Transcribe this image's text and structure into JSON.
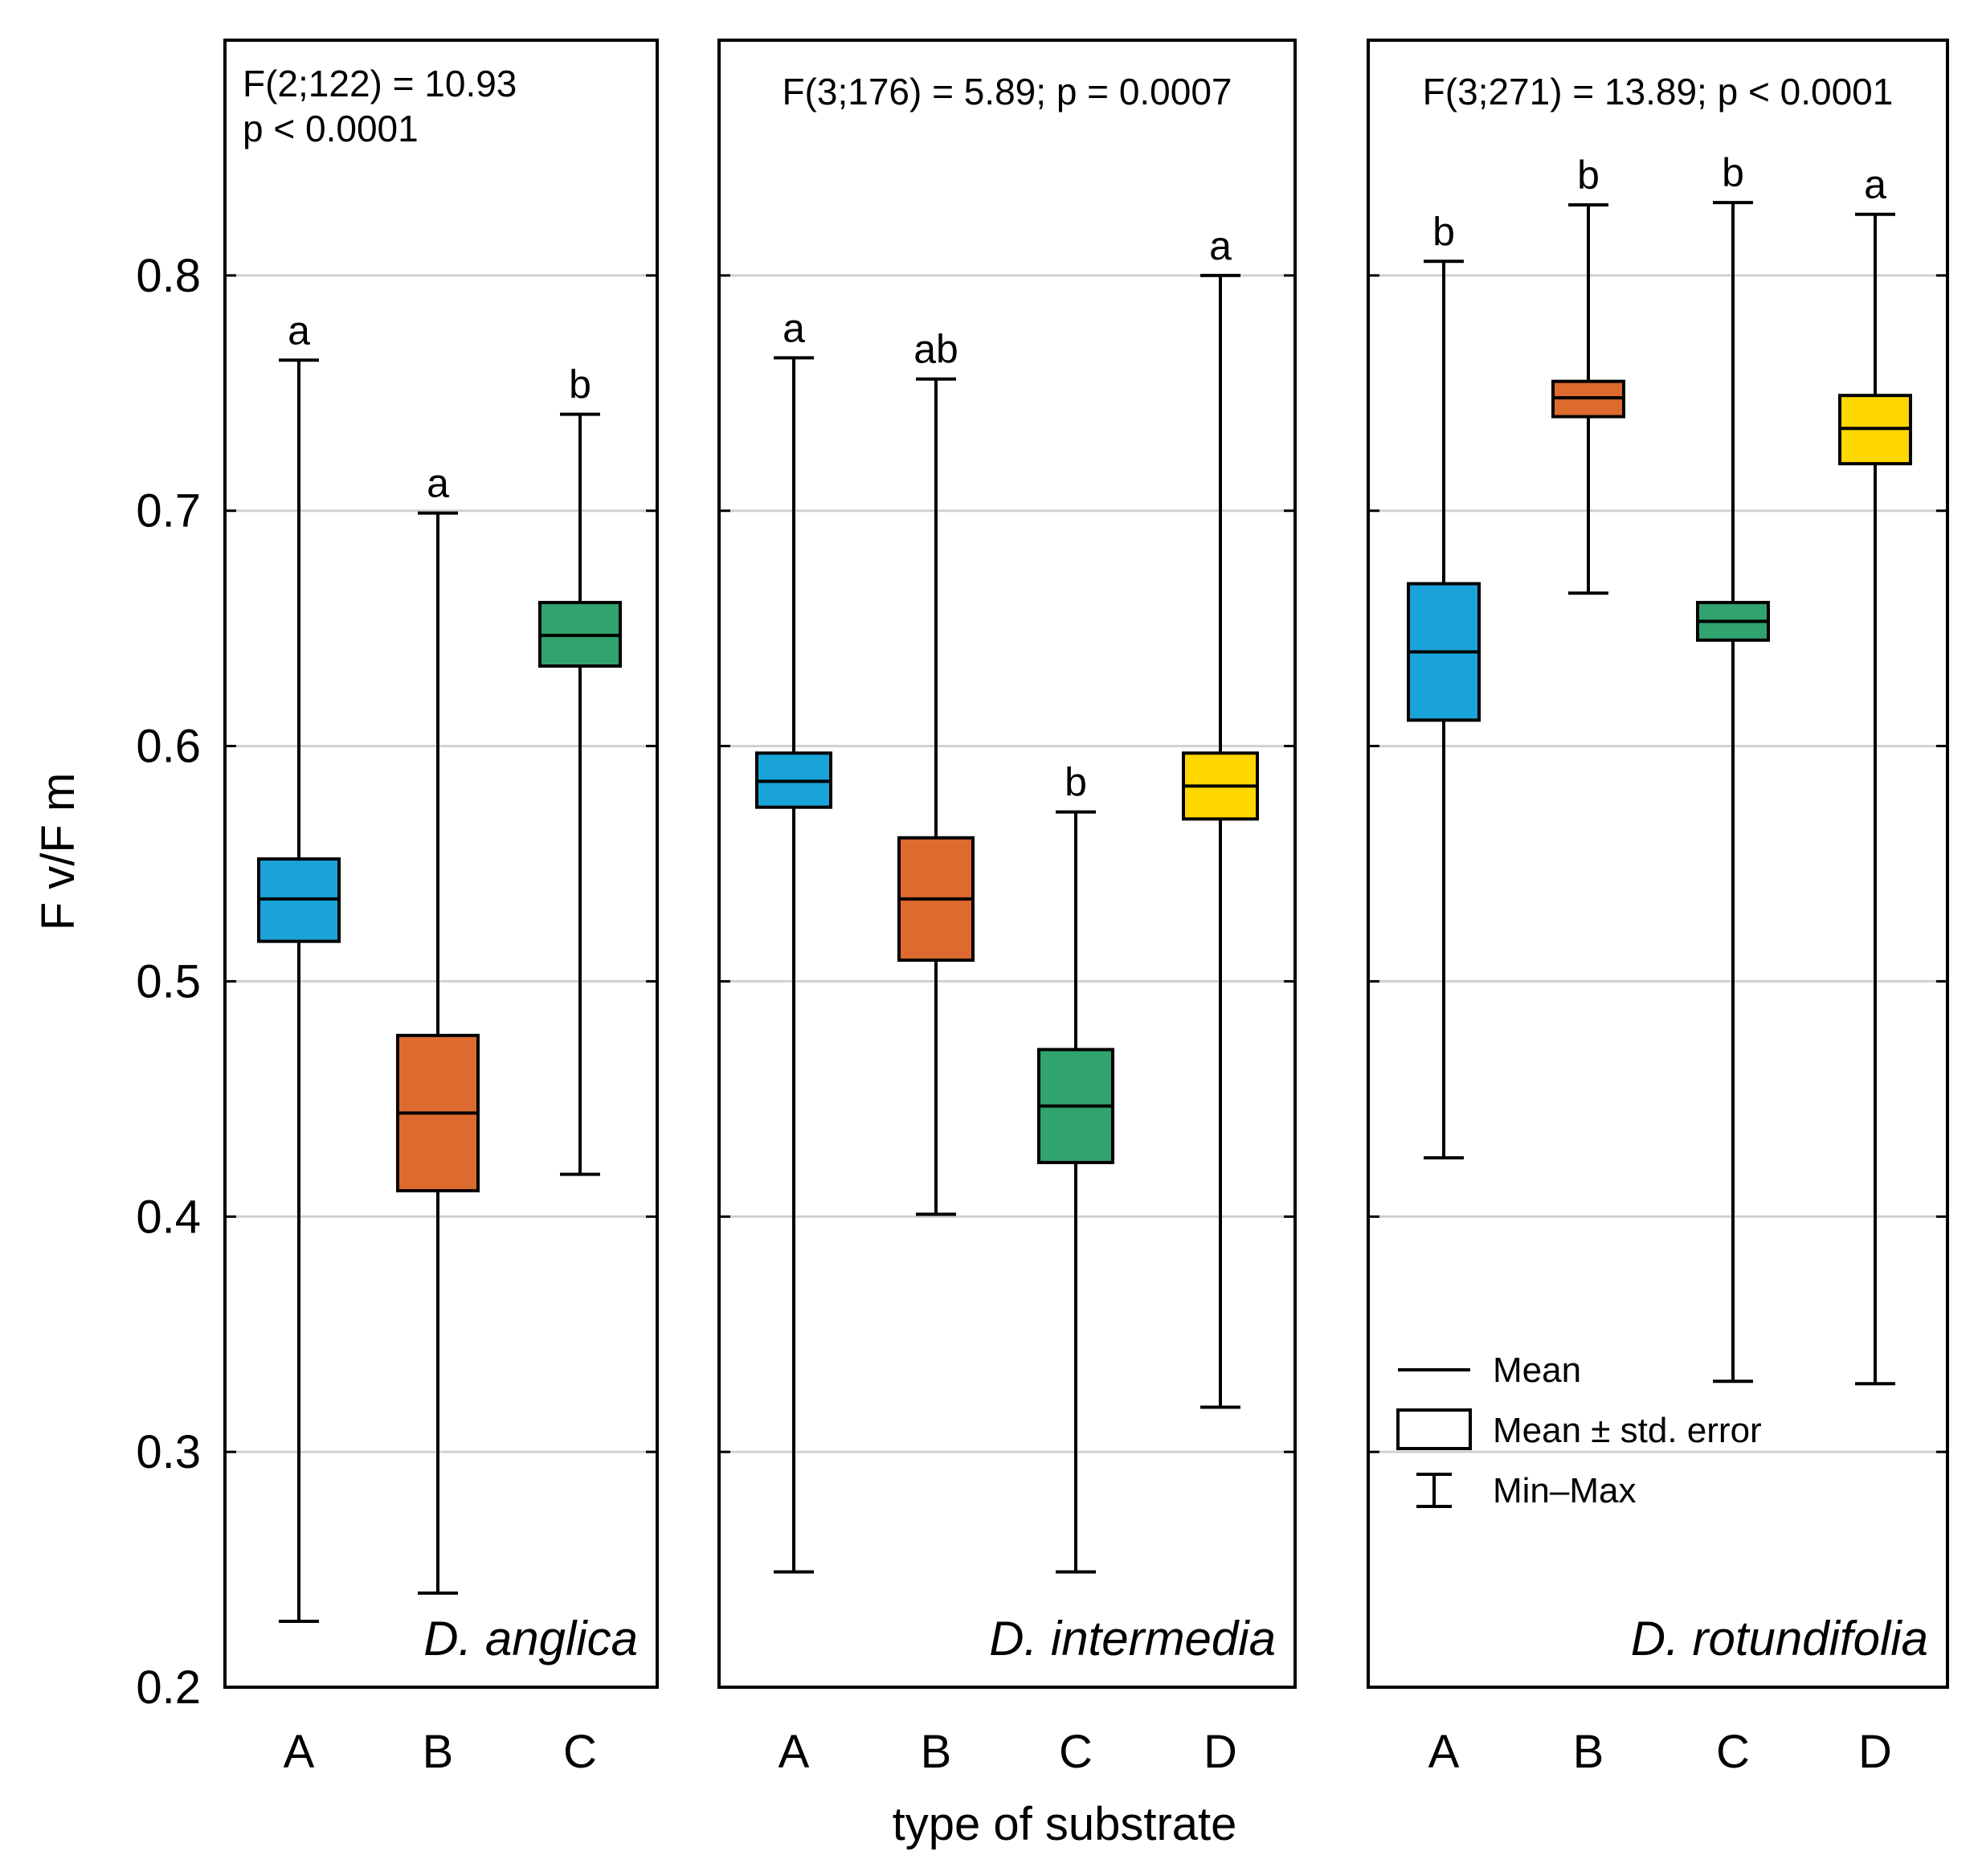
{
  "chart_data": {
    "type": "boxplot",
    "ylabel": "F v/F m",
    "xlabel": "type of substrate",
    "ylim": [
      0.2,
      0.9
    ],
    "yticks": [
      "0.2",
      "0.3",
      "0.4",
      "0.5",
      "0.6",
      "0.7",
      "0.8"
    ],
    "grid": true,
    "colors": {
      "A": "#1aa3d9",
      "B": "#dd6a2f",
      "C": "#31a36f",
      "D": "#ffd700"
    },
    "legend": {
      "placement": "bottom-right of third panel",
      "mean": "Mean",
      "se": "Mean ± std. error",
      "minmax": "Min–Max"
    },
    "panels": [
      {
        "species": "D. anglica",
        "stat_lines": [
          "F(2;122) = 10.93",
          "p < 0.0001"
        ],
        "groups": [
          {
            "category": "A",
            "mean": 0.535,
            "se_low": 0.517,
            "se_high": 0.552,
            "min": 0.228,
            "max": 0.764,
            "letter": "a"
          },
          {
            "category": "B",
            "mean": 0.444,
            "se_low": 0.411,
            "se_high": 0.477,
            "min": 0.24,
            "max": 0.699,
            "letter": "a"
          },
          {
            "category": "C",
            "mean": 0.647,
            "se_low": 0.634,
            "se_high": 0.661,
            "min": 0.418,
            "max": 0.741,
            "letter": "b"
          }
        ]
      },
      {
        "species": "D. intermedia",
        "stat_lines": [
          "F(3;176) = 5.89; p = 0.0007"
        ],
        "groups": [
          {
            "category": "A",
            "mean": 0.585,
            "se_low": 0.574,
            "se_high": 0.597,
            "min": 0.249,
            "max": 0.765,
            "letter": "a"
          },
          {
            "category": "B",
            "mean": 0.535,
            "se_low": 0.509,
            "se_high": 0.561,
            "min": 0.401,
            "max": 0.756,
            "letter": "ab"
          },
          {
            "category": "C",
            "mean": 0.447,
            "se_low": 0.423,
            "se_high": 0.471,
            "min": 0.249,
            "max": 0.572,
            "letter": "b"
          },
          {
            "category": "D",
            "mean": 0.583,
            "se_low": 0.569,
            "se_high": 0.597,
            "min": 0.319,
            "max": 0.8,
            "letter": "a"
          }
        ]
      },
      {
        "species": "D. rotundifolia",
        "stat_lines": [
          "F(3;271) = 13.89; p < 0.0001"
        ],
        "groups": [
          {
            "category": "A",
            "mean": 0.64,
            "se_low": 0.611,
            "se_high": 0.669,
            "min": 0.425,
            "max": 0.806,
            "letter": "b"
          },
          {
            "category": "B",
            "mean": 0.748,
            "se_low": 0.74,
            "se_high": 0.755,
            "min": 0.665,
            "max": 0.83,
            "letter": "b"
          },
          {
            "category": "C",
            "mean": 0.653,
            "se_low": 0.645,
            "se_high": 0.661,
            "min": 0.33,
            "max": 0.831,
            "letter": "b"
          },
          {
            "category": "D",
            "mean": 0.735,
            "se_low": 0.72,
            "se_high": 0.749,
            "min": 0.329,
            "max": 0.826,
            "letter": "a"
          }
        ]
      }
    ]
  }
}
